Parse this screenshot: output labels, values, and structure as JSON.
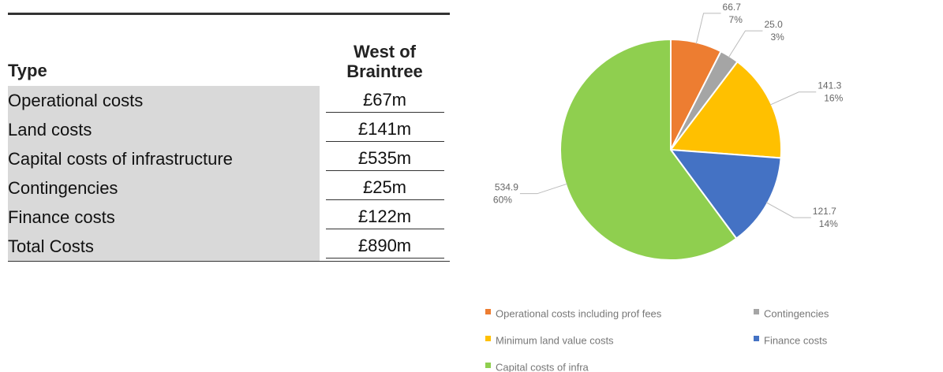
{
  "table": {
    "header": [
      "Type",
      "West of Braintree"
    ],
    "rows": [
      [
        "Operational costs",
        "£67m"
      ],
      [
        "Land costs",
        "£141m"
      ],
      [
        "Capital costs of infrastructure",
        "£535m"
      ],
      [
        "Contingencies",
        "£25m"
      ],
      [
        "Finance costs",
        "£122m"
      ],
      [
        "Total Costs",
        "£890m"
      ]
    ]
  },
  "chart_data": {
    "type": "pie",
    "categories": [
      "Operational costs including prof fees",
      "Contingencies",
      "Minimum land value costs",
      "Finance costs",
      "Capital costs of infra"
    ],
    "values": [
      66.7,
      25.0,
      141.3,
      121.7,
      534.9
    ],
    "value_labels": [
      "66.7",
      "25.0",
      "141.3",
      "121.7",
      "534.9"
    ],
    "percent_labels": [
      "7%",
      "3%",
      "16%",
      "14%",
      "60%"
    ],
    "colors": [
      "#ed7d31",
      "#a5a5a5",
      "#ffc000",
      "#4472c4",
      "#8fcf4f"
    ],
    "legend": "bottom"
  }
}
